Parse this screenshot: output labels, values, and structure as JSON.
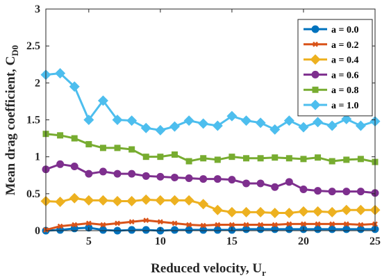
{
  "chart_data": {
    "type": "line",
    "xlabel": {
      "main": "Reduced velocity, U",
      "sub": "r"
    },
    "ylabel": {
      "main": "Mean drag coefficient, C",
      "sub": "D0"
    },
    "xlim": [
      2,
      25
    ],
    "ylim": [
      0,
      3
    ],
    "xticks": [
      5,
      10,
      15,
      20,
      25
    ],
    "yticks": [
      0,
      0.5,
      1,
      1.5,
      2,
      2.5,
      3
    ],
    "xtick_labels": [
      "5",
      "10",
      "15",
      "20",
      "25"
    ],
    "ytick_labels": [
      "0",
      "0.5",
      "1",
      "1.5",
      "2",
      "2.5",
      "3"
    ],
    "grid": false,
    "legend_position": "top-right",
    "x": [
      2,
      3,
      4,
      5,
      6,
      7,
      8,
      9,
      10,
      11,
      12,
      13,
      14,
      15,
      16,
      17,
      18,
      19,
      20,
      21,
      22,
      23,
      24,
      25
    ],
    "series": [
      {
        "name": "a = 0.0",
        "color": "#0072BD",
        "marker": "circle",
        "values": [
          0.0,
          0.01,
          0.03,
          0.04,
          0.01,
          0.0,
          0.01,
          0.01,
          0.0,
          0.01,
          0.01,
          0.01,
          0.01,
          0.01,
          0.02,
          0.02,
          0.02,
          0.02,
          0.02,
          0.02,
          0.02,
          0.02,
          0.02,
          0.02
        ]
      },
      {
        "name": "a = 0.2",
        "color": "#D95319",
        "marker": "x",
        "values": [
          0.01,
          0.06,
          0.08,
          0.1,
          0.08,
          0.1,
          0.12,
          0.14,
          0.12,
          0.1,
          0.08,
          0.07,
          0.08,
          0.08,
          0.08,
          0.08,
          0.08,
          0.09,
          0.09,
          0.09,
          0.09,
          0.09,
          0.08,
          0.09
        ]
      },
      {
        "name": "a = 0.4",
        "color": "#EDB120",
        "marker": "diamond",
        "values": [
          0.4,
          0.39,
          0.44,
          0.41,
          0.41,
          0.4,
          0.4,
          0.42,
          0.41,
          0.41,
          0.41,
          0.36,
          0.28,
          0.25,
          0.25,
          0.25,
          0.24,
          0.24,
          0.26,
          0.26,
          0.25,
          0.28,
          0.28,
          0.28
        ]
      },
      {
        "name": "a = 0.6",
        "color": "#7E2F8E",
        "marker": "circle",
        "values": [
          0.83,
          0.9,
          0.87,
          0.77,
          0.8,
          0.77,
          0.77,
          0.74,
          0.73,
          0.72,
          0.71,
          0.7,
          0.7,
          0.69,
          0.64,
          0.64,
          0.59,
          0.66,
          0.56,
          0.54,
          0.53,
          0.53,
          0.53,
          0.51
        ]
      },
      {
        "name": "a = 0.8",
        "color": "#77AC30",
        "marker": "square",
        "values": [
          1.31,
          1.29,
          1.25,
          1.17,
          1.12,
          1.12,
          1.1,
          1.0,
          1.0,
          1.03,
          0.94,
          0.98,
          0.96,
          1.0,
          0.98,
          0.98,
          0.99,
          0.98,
          0.97,
          0.99,
          0.94,
          0.96,
          0.97,
          0.93
        ]
      },
      {
        "name": "a = 1.0",
        "color": "#4DBEEE",
        "marker": "diamond",
        "values": [
          2.11,
          2.13,
          1.95,
          1.5,
          1.76,
          1.5,
          1.49,
          1.39,
          1.36,
          1.41,
          1.49,
          1.45,
          1.42,
          1.55,
          1.49,
          1.46,
          1.37,
          1.49,
          1.4,
          1.47,
          1.42,
          1.51,
          1.42,
          1.48
        ]
      }
    ]
  }
}
